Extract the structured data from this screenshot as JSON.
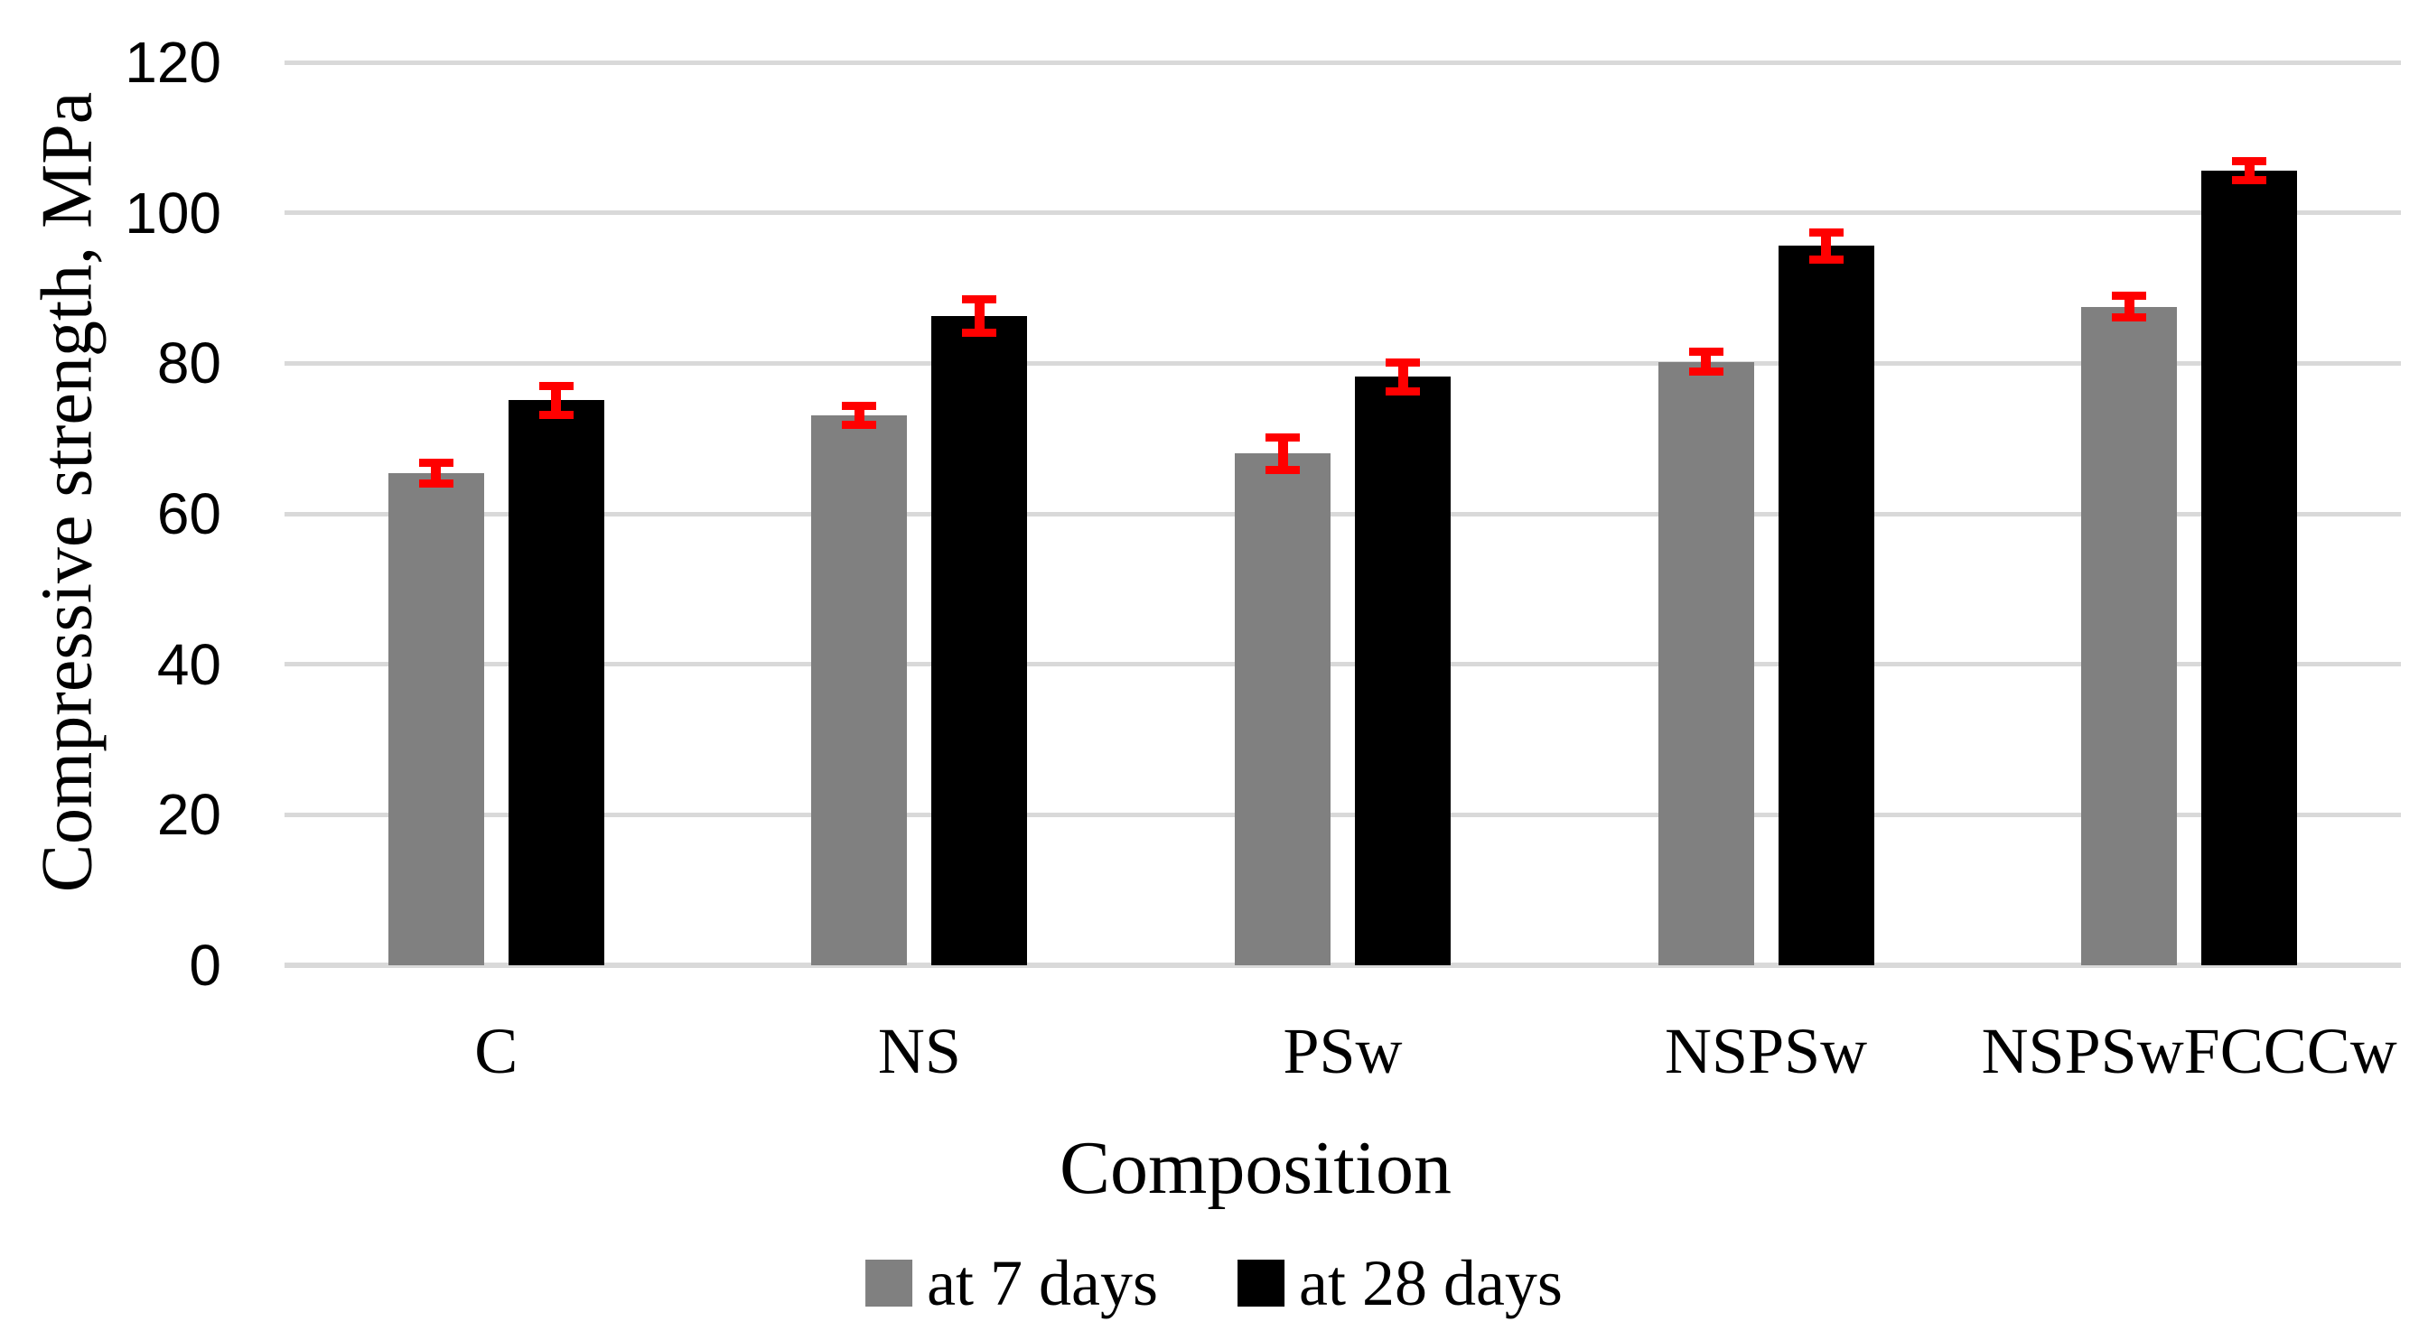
{
  "chart_data": {
    "type": "bar",
    "title": "",
    "xlabel": "Composition",
    "ylabel": "Compressive strength, MPa",
    "categories": [
      "C",
      "NS",
      "PSw",
      "NSPSw",
      "NSPSwFCCCw"
    ],
    "series": [
      {
        "name": "at 7 days",
        "color": "#808080",
        "values": [
          65.4,
          73.1,
          68.0,
          80.2,
          87.5
        ],
        "errors": [
          1.4,
          1.3,
          2.2,
          1.4,
          1.5
        ]
      },
      {
        "name": "at 28 days",
        "color": "#000000",
        "values": [
          75.1,
          86.3,
          78.2,
          95.6,
          105.6
        ],
        "errors": [
          2.0,
          2.3,
          2.0,
          1.9,
          1.3
        ]
      }
    ],
    "ylim": [
      0,
      120
    ],
    "yticks": [
      0,
      20,
      40,
      60,
      80,
      100,
      120
    ],
    "grid": true,
    "gridline_color": "#D9D9D9",
    "error_bar_color": "#FF0000",
    "legend_position": "bottom"
  }
}
